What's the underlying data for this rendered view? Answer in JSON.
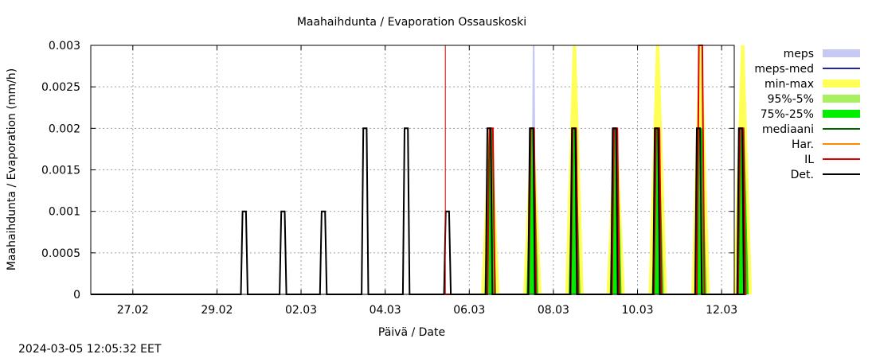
{
  "chart_data": {
    "type": "area",
    "title": "Maahaihdunta / Evaporation  Ossauskoski",
    "xlabel": "Päivä / Date",
    "ylabel": "Maahaihdunta / Evaporation (mm/h)",
    "timestamp": "2024-03-05 12:05:32 EET",
    "x_unit": "days since 26.02 00:00",
    "xlim": [
      0,
      15.3
    ],
    "ylim": [
      0,
      0.003
    ],
    "y_ticks": [
      "0",
      "0.0005",
      "0.001",
      "0.0015",
      "0.002",
      "0.0025",
      "0.003"
    ],
    "y_tick_values": [
      0,
      0.0005,
      0.001,
      0.0015,
      0.002,
      0.0025,
      0.003
    ],
    "x_ticks": [
      "27.02",
      "29.02",
      "02.03",
      "04.03",
      "06.03",
      "08.03",
      "10.03",
      "12.03"
    ],
    "x_tick_values": [
      1,
      3,
      5,
      7,
      9,
      11,
      13,
      15
    ],
    "grid": true,
    "forecast_start": 8.43,
    "legend": [
      {
        "key": "meps",
        "label": "meps",
        "color": "#c8c8f4",
        "kind": "band"
      },
      {
        "key": "meps_med",
        "label": "meps-med",
        "color": "#2323a8",
        "kind": "line"
      },
      {
        "key": "minmax",
        "label": "min-max",
        "color": "#ffff55",
        "kind": "band"
      },
      {
        "key": "p95",
        "label": "95%-5%",
        "color": "#a8f060",
        "kind": "band"
      },
      {
        "key": "p75",
        "label": "75%-25%",
        "color": "#00ee00",
        "kind": "band"
      },
      {
        "key": "mediaani",
        "label": "mediaani",
        "color": "#006400",
        "kind": "line"
      },
      {
        "key": "har",
        "label": "Har.",
        "color": "#ff8800",
        "kind": "line"
      },
      {
        "key": "il",
        "label": "IL",
        "color": "#dd0000",
        "kind": "line"
      },
      {
        "key": "det",
        "label": "Det.",
        "color": "#000000",
        "kind": "line"
      }
    ],
    "series": {
      "det": [
        {
          "center": 3.65,
          "value": 0.001
        },
        {
          "center": 4.57,
          "value": 0.001
        },
        {
          "center": 5.53,
          "value": 0.001
        },
        {
          "center": 6.52,
          "value": 0.002
        },
        {
          "center": 7.5,
          "value": 0.002
        },
        {
          "center": 8.48,
          "value": 0.001
        },
        {
          "center": 9.47,
          "value": 0.002
        },
        {
          "center": 10.48,
          "value": 0.002
        },
        {
          "center": 11.48,
          "value": 0.002
        },
        {
          "center": 12.45,
          "value": 0.002
        },
        {
          "center": 13.45,
          "value": 0.002
        },
        {
          "center": 14.45,
          "value": 0.002
        },
        {
          "center": 15.45,
          "value": 0.002
        }
      ],
      "il": [
        {
          "center": 9.52,
          "value": 0.002
        },
        {
          "center": 10.5,
          "value": 0.002
        },
        {
          "center": 11.5,
          "value": 0.002
        },
        {
          "center": 12.48,
          "value": 0.002
        },
        {
          "center": 13.48,
          "value": 0.002
        },
        {
          "center": 14.5,
          "value": 0.003
        },
        {
          "center": 15.48,
          "value": 0.002
        }
      ],
      "meps": [
        {
          "center": 10.53,
          "value": 0.003
        }
      ],
      "minmax": [
        {
          "center": 9.5,
          "value": 0.002
        },
        {
          "center": 10.5,
          "value": 0.002
        },
        {
          "center": 11.5,
          "value": 0.003
        },
        {
          "center": 12.48,
          "value": 0.002
        },
        {
          "center": 13.48,
          "value": 0.003
        },
        {
          "center": 14.5,
          "value": 0.003
        },
        {
          "center": 15.5,
          "value": 0.003
        }
      ],
      "p75": [
        {
          "center": 9.5,
          "value": 0.002
        },
        {
          "center": 10.5,
          "value": 0.002
        },
        {
          "center": 11.5,
          "value": 0.002
        },
        {
          "center": 12.48,
          "value": 0.002
        },
        {
          "center": 13.48,
          "value": 0.002
        },
        {
          "center": 14.5,
          "value": 0.002
        },
        {
          "center": 15.5,
          "value": 0.002
        }
      ]
    }
  }
}
